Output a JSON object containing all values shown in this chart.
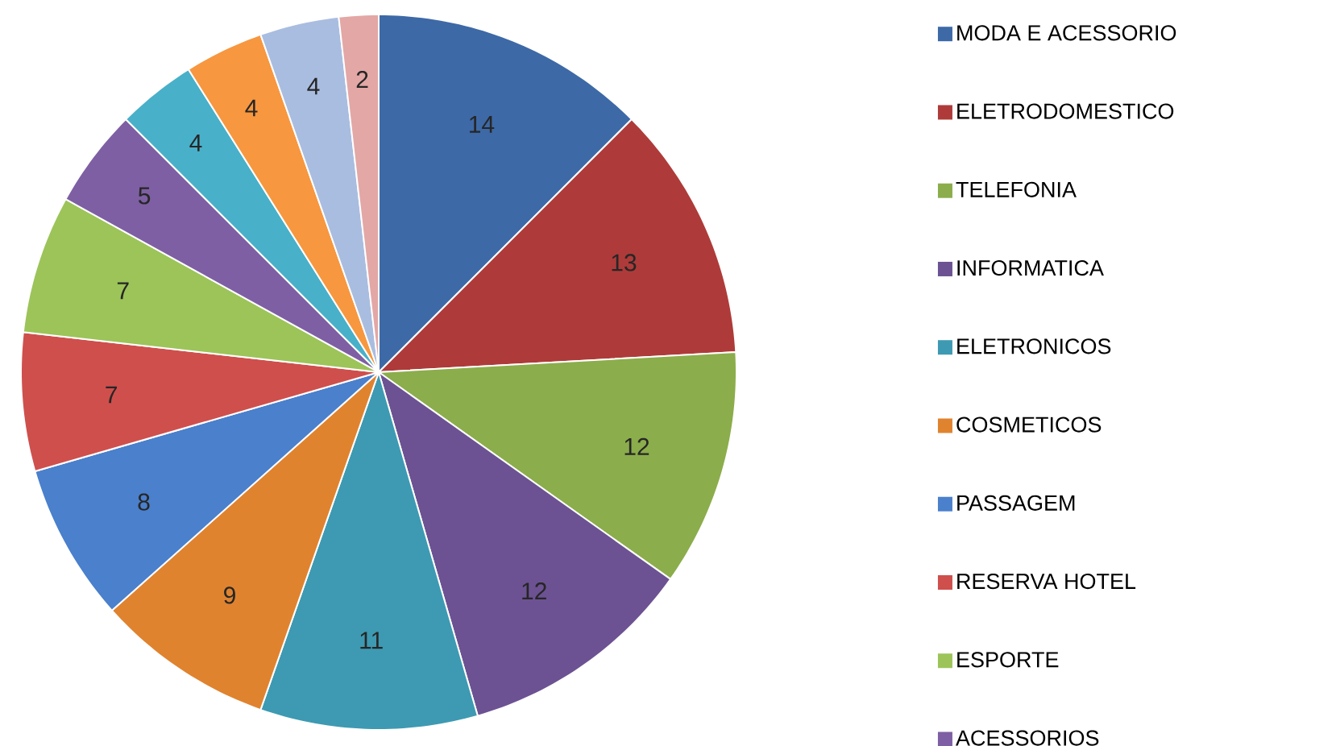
{
  "chart_data": {
    "type": "pie",
    "data_labels": true,
    "legend": "right",
    "categories": [
      "MODA E ACESSORIO",
      "ELETRODOMESTICO",
      "TELEFONIA",
      "INFORMATICA",
      "ELETRONICOS",
      "COSMETICOS",
      "PASSAGEM",
      "RESERVA HOTEL",
      "ESPORTE",
      "ACESSORIOS",
      null,
      null,
      null,
      null
    ],
    "values": [
      14,
      13,
      12,
      12,
      11,
      9,
      8,
      7,
      7,
      5,
      4,
      4,
      4,
      2
    ],
    "colors": [
      "#3d69a6",
      "#ae3b39",
      "#8bad4b",
      "#6c5292",
      "#3d9ab2",
      "#e0832f",
      "#4a80cc",
      "#cf4f4c",
      "#9cc459",
      "#7e5fa3",
      "#49b0c9",
      "#f7973f",
      "#a9bde0",
      "#e3a7a6"
    ]
  }
}
